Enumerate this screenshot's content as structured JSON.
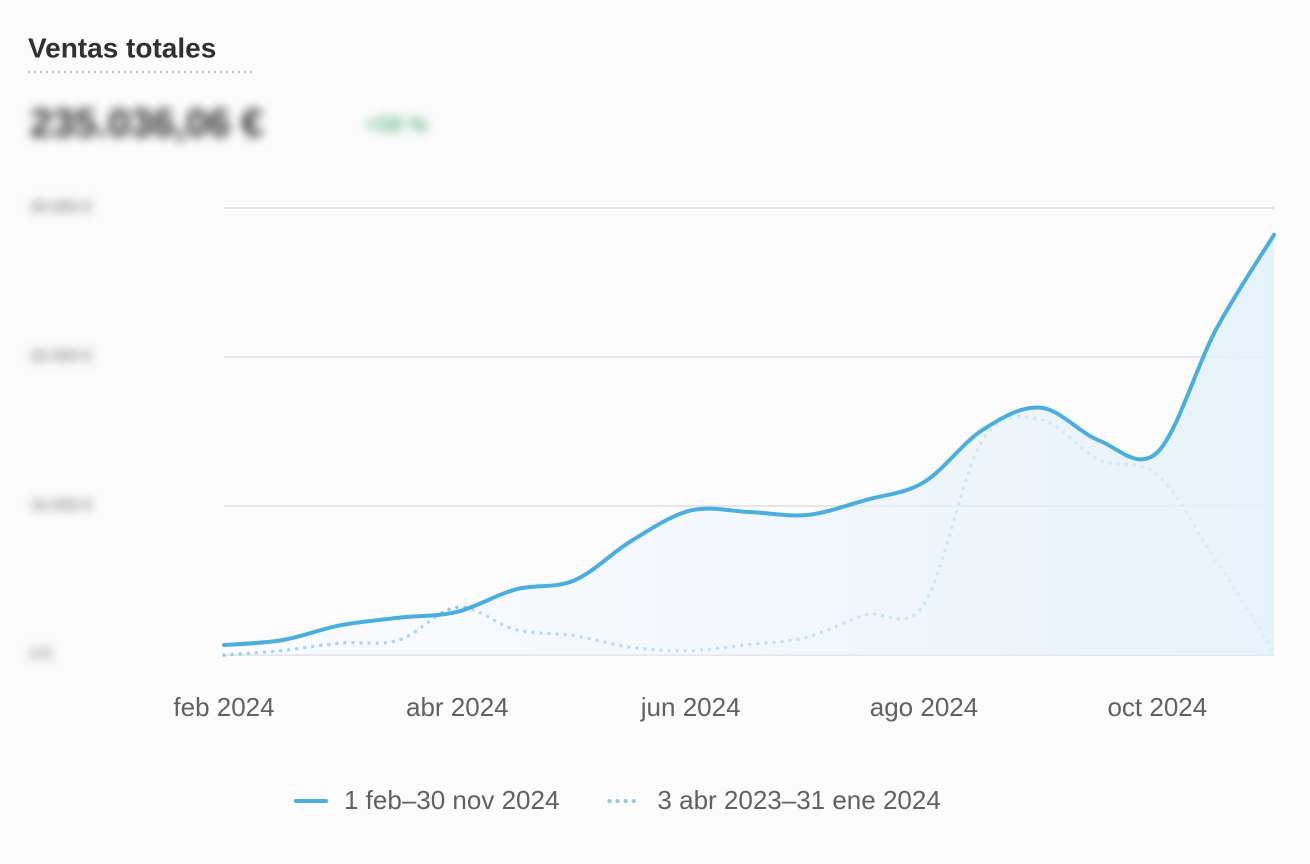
{
  "header": {
    "title": "Ventas totales",
    "total": "235.036,06 €",
    "change": "+58 %"
  },
  "chart_data": {
    "type": "line",
    "categories": [
      "feb 2024",
      null,
      null,
      null,
      "abr 2024",
      null,
      null,
      null,
      "jun 2024",
      null,
      null,
      null,
      "ago 2024",
      null,
      null,
      null,
      "oct 2024",
      null,
      null
    ],
    "series": [
      {
        "name": "1 feb–30 nov 2024",
        "color": "#4aaee0",
        "style": "solid",
        "values": [
          670,
          1000,
          2000,
          2500,
          2900,
          4400,
          5000,
          7700,
          9700,
          9600,
          9400,
          10400,
          11600,
          15100,
          16600,
          14400,
          13600,
          21800,
          28200
        ]
      },
      {
        "name": "3 abr 2023–31 ene 2024",
        "color": "#8ecbe9",
        "style": "dotted",
        "values": [
          0,
          300,
          800,
          1000,
          3200,
          1700,
          1300,
          500,
          300,
          700,
          1200,
          2700,
          3400,
          14400,
          15800,
          13100,
          12100,
          6400,
          200
        ]
      }
    ],
    "ylim": [
      0,
      30000
    ],
    "yticks": [
      {
        "value": 0,
        "label": "0 €"
      },
      {
        "value": 10000,
        "label": "10.000 €"
      },
      {
        "value": 20000,
        "label": "20.000 €"
      },
      {
        "value": 30000,
        "label": "30.000 €"
      }
    ],
    "grid": true
  }
}
